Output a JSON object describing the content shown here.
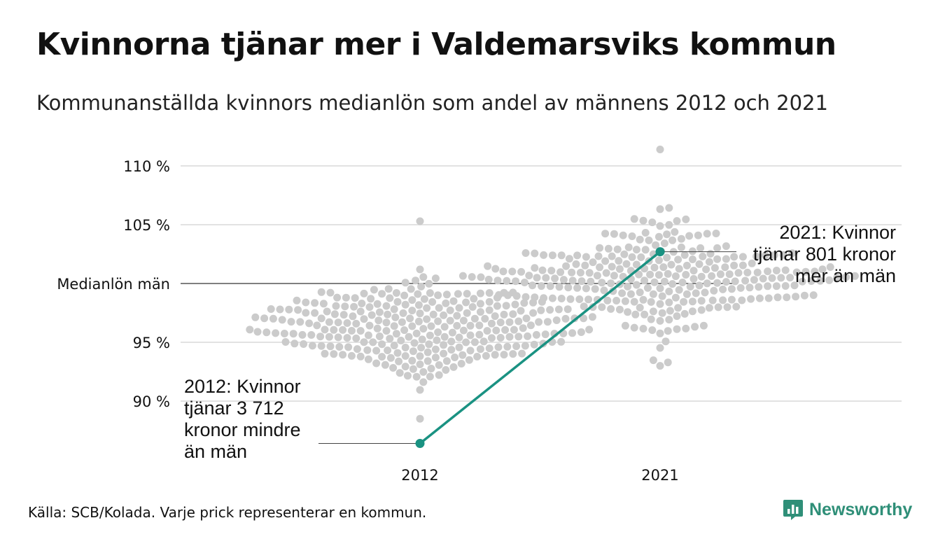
{
  "title": "Kvinnorna tjänar mer i Valdemarsviks kommun",
  "subtitle": "Kommunanställda kvinnors medianlön som andel av männens 2012 och 2021",
  "source": "Källa: SCB/Kolada. Varje prick representerar en kommun.",
  "brand": {
    "name": "Newsworthy",
    "icon": "newsworthy-logo-icon"
  },
  "colors": {
    "accent": "#1a9282",
    "dots": "#cbcbcb",
    "grid": "#e2e2e2",
    "refline": "#333333"
  },
  "chart_data": {
    "type": "scatter",
    "subtype": "beeswarm-with-highlight-line",
    "categories": [
      "2012",
      "2021"
    ],
    "ylim": [
      87,
      111
    ],
    "y_ticks": [
      {
        "value": 110,
        "label": "110 %"
      },
      {
        "value": 105,
        "label": "105 %"
      },
      {
        "value": 100,
        "label": "Medianlön män"
      },
      {
        "value": 95,
        "label": "95 %"
      },
      {
        "value": 90,
        "label": "90 %"
      }
    ],
    "grid": true,
    "reference_line": {
      "value": 100,
      "label": "Medianlön män"
    },
    "distribution": {
      "2012": {
        "median": 96.2,
        "sd": 2.0,
        "min": 88.5,
        "max": 105.3,
        "count": 290
      },
      "2021": {
        "median": 100.6,
        "sd": 2.1,
        "min": 93.0,
        "max": 111.4,
        "count": 290
      }
    },
    "highlight": {
      "name": "Valdemarsvik",
      "points": [
        {
          "x": "2012",
          "y": 86.4
        },
        {
          "x": "2021",
          "y": 102.7
        }
      ]
    },
    "annotations": [
      {
        "x": "2012",
        "lines": [
          "2012: Kvinnor",
          "tjänar 3 712",
          "kronor mindre",
          "än män"
        ]
      },
      {
        "x": "2021",
        "lines": [
          "2021: Kvinnor",
          "tjänar 801 kronor",
          "mer än män"
        ]
      }
    ]
  }
}
